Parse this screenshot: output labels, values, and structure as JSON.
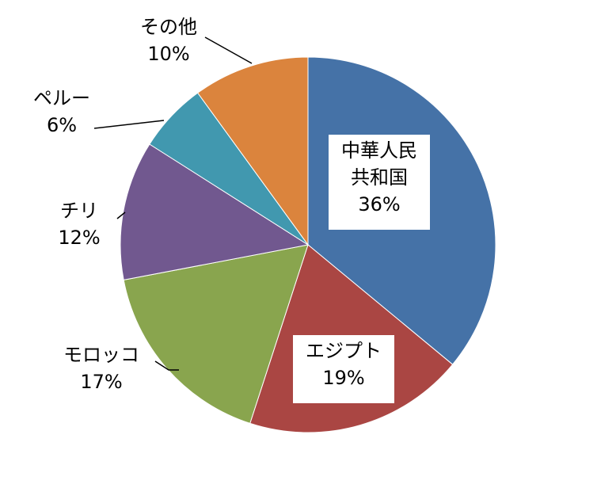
{
  "chart_data": {
    "type": "pie",
    "title": "",
    "slices": [
      {
        "name": "中華人民共和国",
        "label_lines": [
          "中華人民",
          "共和国"
        ],
        "value": 36,
        "percent_label": "36%",
        "color": "#4572A7"
      },
      {
        "name": "エジプト",
        "label_lines": [
          "エジプト"
        ],
        "value": 19,
        "percent_label": "19%",
        "color": "#AA4643"
      },
      {
        "name": "モロッコ",
        "label_lines": [
          "モロッコ"
        ],
        "value": 17,
        "percent_label": "17%",
        "color": "#89A54E"
      },
      {
        "name": "チリ",
        "label_lines": [
          "チリ"
        ],
        "value": 12,
        "percent_label": "12%",
        "color": "#71588F"
      },
      {
        "name": "ペルー",
        "label_lines": [
          "ペルー"
        ],
        "value": 6,
        "percent_label": "6%",
        "color": "#4198AF"
      },
      {
        "name": "その他",
        "label_lines": [
          "その他"
        ],
        "value": 10,
        "percent_label": "10%",
        "color": "#DB843D"
      }
    ],
    "start_angle": "12 o'clock",
    "direction": "clockwise",
    "legend": "none",
    "data_labels": "category name and percent"
  }
}
